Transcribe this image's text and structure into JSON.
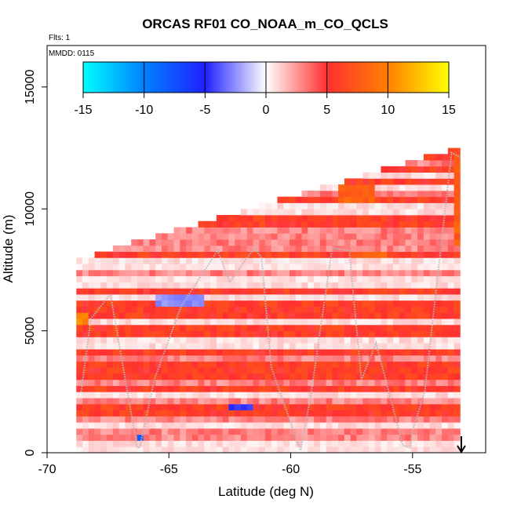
{
  "chart_data": {
    "type": "heatmap",
    "title": "ORCAS RF01 CO_NOAA_m_CO_QCLS",
    "flights_label": "Flts: 1",
    "date_label": "MMDD: 0115",
    "xlabel": "Latitude (deg N)",
    "ylabel": "Altitude (m)",
    "xlim": [
      -70,
      -52
    ],
    "ylim": [
      0,
      16700
    ],
    "x_ticks": [
      -70,
      -65,
      -60,
      -55
    ],
    "x_tick_labels": [
      "-70",
      "-65",
      "-60",
      "-55"
    ],
    "y_ticks": [
      0,
      5000,
      10000,
      15000
    ],
    "y_tick_labels": [
      "0",
      "5000",
      "10000",
      "15000"
    ],
    "colorbar": {
      "range": [
        -15,
        15
      ],
      "ticks": [
        -15,
        -10,
        -5,
        0,
        5,
        10,
        15
      ],
      "tick_labels": [
        "-15",
        "-10",
        "-5",
        "0",
        "5",
        "10",
        "15"
      ],
      "colors": [
        "#00ffff",
        "#0080ff",
        "#2020ff",
        "#ffffff",
        "#ff3030",
        "#ff8000",
        "#ffff00"
      ]
    },
    "domain": {
      "lat_min": -68.8,
      "lat_max": -53.0,
      "bottom_alt": 0,
      "top_alt_at_lat_min": 8100,
      "top_alt_at_lat_max": 12700,
      "bin_lat": 0.25,
      "bin_alt": 250
    },
    "pattern_features": {
      "blue_patches": [
        {
          "lat": [
            -65.5,
            -63.5
          ],
          "alt": [
            6000,
            6500
          ],
          "value": -3
        },
        {
          "lat": [
            -62.5,
            -61.5
          ],
          "alt": [
            1750,
            2000
          ],
          "value": -5
        },
        {
          "lat": [
            -66.2,
            -66.0
          ],
          "alt": [
            500,
            750
          ],
          "value": -8
        }
      ],
      "orange_patches": [
        {
          "lat": [
            -68.8,
            -68.4
          ],
          "alt": [
            5250,
            5750
          ],
          "value": 11
        },
        {
          "lat": [
            -53.3,
            -53.0
          ],
          "alt": [
            8500,
            12300
          ],
          "value": 9
        },
        {
          "lat": [
            -58.0,
            -56.5
          ],
          "alt": [
            10300,
            11000
          ],
          "value": 9
        },
        {
          "lat": [
            -57.5,
            -56.0
          ],
          "alt": [
            8000,
            8300
          ],
          "value": 9
        }
      ]
    },
    "flight_track": {
      "lat": [
        -68.6,
        -68.2,
        -67.4,
        -66.3,
        -66.2,
        -65.6,
        -64.5,
        -63.0,
        -62.5,
        -61.5,
        -61.2,
        -60.8,
        -59.6,
        -59.2,
        -58.3,
        -57.7,
        -57.6,
        -57.1,
        -56.5,
        -55.4,
        -55.1,
        -55.0,
        -54.5,
        -53.4,
        -53.0
      ],
      "alt": [
        2500,
        5500,
        6500,
        200,
        200,
        3000,
        6000,
        8300,
        7000,
        8400,
        8000,
        3500,
        100,
        2200,
        8400,
        8300,
        8300,
        3000,
        4500,
        300,
        200,
        900,
        2500,
        12300,
        12100
      ]
    },
    "marker_lat": -53.0,
    "marker_label": "↓"
  }
}
